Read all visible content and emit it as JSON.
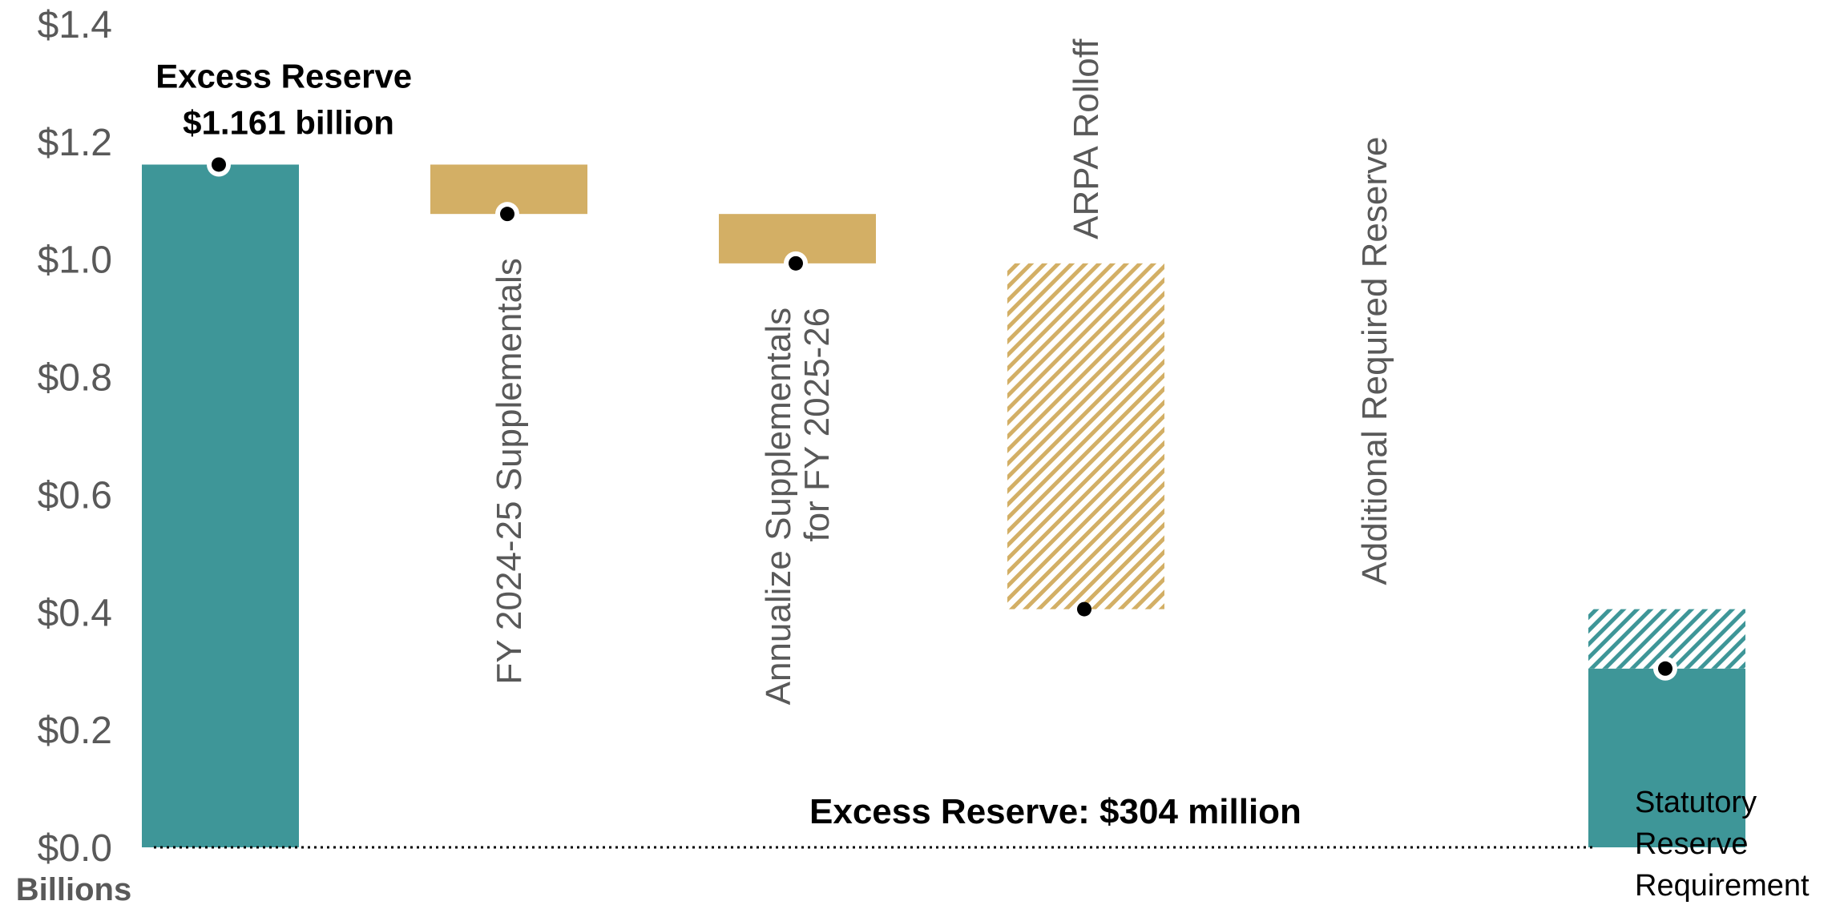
{
  "chart_data": {
    "type": "bar",
    "subtype": "waterfall",
    "yunit": "Billions",
    "ylim": [
      0,
      1.4
    ],
    "yticks": [
      "$0.0",
      "$0.2",
      "$0.4",
      "$0.6",
      "$0.8",
      "$1.0",
      "$1.2",
      "$1.4"
    ],
    "grid": false,
    "legend": "none",
    "steps": [
      {
        "label": "",
        "start": 0,
        "end": 1.161,
        "kind": "total",
        "pattern": "solid",
        "color": "#3e9698"
      },
      {
        "label": "FY 2024-25 Supplementals",
        "start": 1.161,
        "end": 1.077,
        "kind": "decrease",
        "pattern": "solid",
        "color": "#d3af65"
      },
      {
        "label": "Annualize Supplementals for FY 2025-26",
        "lines": [
          "Annualize Supplementals",
          "for FY 2025-26"
        ],
        "start": 1.077,
        "end": 0.993,
        "kind": "decrease",
        "pattern": "solid",
        "color": "#d3af65"
      },
      {
        "label": "ARPA Rolloff",
        "start": 0.993,
        "end": 0.405,
        "kind": "decrease",
        "pattern": "hatched",
        "color": "#d3af65"
      },
      {
        "label": "Additional Required Reserve",
        "start": 0.405,
        "end": 0.304,
        "kind": "decrease",
        "pattern": "hatched",
        "color": "#3e9698"
      },
      {
        "label": "",
        "start": 0,
        "end": 0.304,
        "kind": "total",
        "pattern": "solid",
        "color": "#3e9698"
      }
    ],
    "annotations": {
      "start_line1": "Excess Reserve",
      "start_line2": "$1.161 billion",
      "end": "Excess Reserve: $304 million"
    },
    "reference_line": {
      "value": 0,
      "style": "dotted",
      "label_lines": [
        "Statutory",
        "Reserve",
        "Requirement"
      ]
    }
  }
}
